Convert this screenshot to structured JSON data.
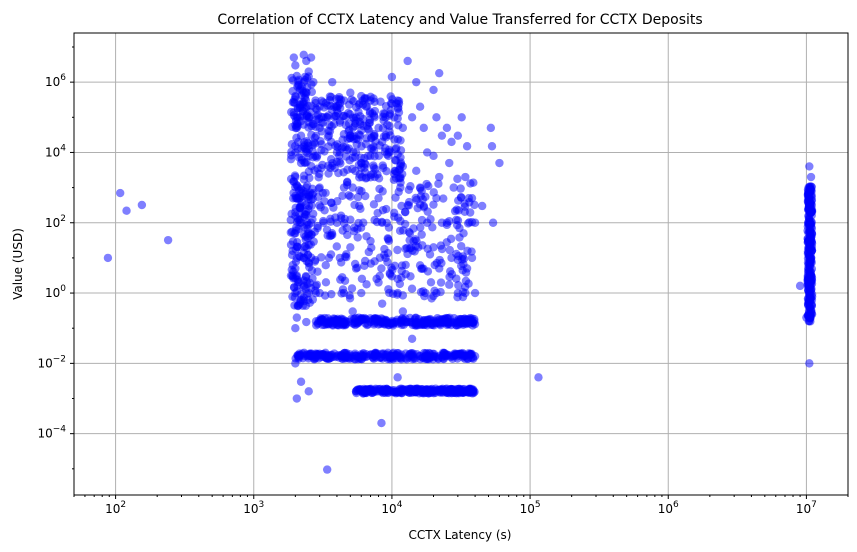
{
  "chart_data": {
    "type": "scatter",
    "title": "Correlation of CCTX Latency and Value Transferred for CCTX Deposits",
    "xlabel": "CCTX Latency (s)",
    "ylabel": "Value (USD)",
    "xscale": "log",
    "yscale": "log",
    "xlim": [
      50,
      20000000
    ],
    "ylim": [
      1.8e-06,
      25000000
    ],
    "x_ticks": [
      {
        "value": 100,
        "base": "10",
        "exp": "2"
      },
      {
        "value": 1000,
        "base": "10",
        "exp": "3"
      },
      {
        "value": 10000,
        "base": "10",
        "exp": "4"
      },
      {
        "value": 100000,
        "base": "10",
        "exp": "5"
      },
      {
        "value": 1000000,
        "base": "10",
        "exp": "6"
      },
      {
        "value": 10000000,
        "base": "10",
        "exp": "7"
      }
    ],
    "y_ticks": [
      {
        "value": 0.0001,
        "base": "10",
        "exp": "−4"
      },
      {
        "value": 0.01,
        "base": "10",
        "exp": "−2"
      },
      {
        "value": 1,
        "base": "10",
        "exp": "0"
      },
      {
        "value": 100,
        "base": "10",
        "exp": "2"
      },
      {
        "value": 10000,
        "base": "10",
        "exp": "4"
      },
      {
        "value": 1000000,
        "base": "10",
        "exp": "6"
      }
    ],
    "grid": true,
    "marker_color": "#0000ff",
    "marker_alpha": 0.5,
    "series": [
      {
        "points": [
          [
            88,
            10
          ],
          [
            108,
            700
          ],
          [
            120,
            220
          ],
          [
            155,
            320
          ],
          [
            240,
            32
          ],
          [
            1950,
            5000000
          ],
          [
            2000,
            3000000
          ],
          [
            2050,
            1500000
          ],
          [
            2100,
            800000
          ],
          [
            2000,
            400000
          ],
          [
            2150,
            200000
          ],
          [
            2000,
            100000
          ],
          [
            2050,
            50000
          ],
          [
            2100,
            20000
          ],
          [
            2000,
            10000
          ],
          [
            2200,
            5000
          ],
          [
            2000,
            2000
          ],
          [
            2100,
            1000
          ],
          [
            2050,
            500
          ],
          [
            2000,
            200
          ],
          [
            2150,
            100
          ],
          [
            2000,
            50
          ],
          [
            2100,
            20
          ],
          [
            2050,
            10
          ],
          [
            2000,
            5
          ],
          [
            2100,
            2
          ],
          [
            2000,
            1
          ],
          [
            2150,
            0.5
          ],
          [
            2050,
            0.2
          ],
          [
            2000,
            0.1
          ],
          [
            2100,
            0.016
          ],
          [
            2000,
            0.01
          ],
          [
            2050,
            0.001
          ],
          [
            2200,
            0.003
          ],
          [
            2300,
            6000000
          ],
          [
            2400,
            4000000
          ],
          [
            2500,
            2000000
          ],
          [
            2600,
            5000000
          ],
          [
            2300,
            500000
          ],
          [
            2500,
            100000
          ],
          [
            2400,
            1000
          ],
          [
            2600,
            100
          ],
          [
            2300,
            10
          ],
          [
            2500,
            1
          ],
          [
            2400,
            0.15
          ],
          [
            2600,
            0.016
          ],
          [
            2500,
            0.0016
          ],
          [
            2700,
            1000000
          ],
          [
            2800,
            300000
          ],
          [
            3000,
            200000
          ],
          [
            3200,
            100000
          ],
          [
            3000,
            50000
          ],
          [
            3500,
            30000
          ],
          [
            3000,
            1000
          ],
          [
            3200,
            100
          ],
          [
            3500,
            10
          ],
          [
            3000,
            1
          ],
          [
            3200,
            0.15
          ],
          [
            3500,
            0.016
          ],
          [
            3400,
            9.5e-06
          ],
          [
            3700,
            1000000
          ],
          [
            4000,
            200000
          ],
          [
            4500,
            300000
          ],
          [
            4200,
            80000
          ],
          [
            4000,
            10000
          ],
          [
            4500,
            1000
          ],
          [
            4000,
            100
          ],
          [
            4200,
            10
          ],
          [
            4500,
            1
          ],
          [
            4000,
            0.15
          ],
          [
            4300,
            0.016
          ],
          [
            5000,
            500000
          ],
          [
            5500,
            100000
          ],
          [
            6000,
            400000
          ],
          [
            6500,
            200000
          ],
          [
            5000,
            30000
          ],
          [
            5500,
            10000
          ],
          [
            6000,
            5000
          ],
          [
            5200,
            1000
          ],
          [
            5800,
            300
          ],
          [
            6200,
            100
          ],
          [
            5000,
            20
          ],
          [
            5500,
            5
          ],
          [
            6000,
            1
          ],
          [
            5200,
            0.3
          ],
          [
            5800,
            0.15
          ],
          [
            6200,
            0.016
          ],
          [
            5500,
            0.0016
          ],
          [
            6000,
            0.0016
          ],
          [
            6500,
            0.0016
          ],
          [
            7000,
            300000
          ],
          [
            7500,
            100000
          ],
          [
            8000,
            50000
          ],
          [
            8500,
            20000
          ],
          [
            7000,
            8000
          ],
          [
            7500,
            2000
          ],
          [
            8000,
            500
          ],
          [
            8500,
            100
          ],
          [
            7000,
            30
          ],
          [
            7500,
            8
          ],
          [
            8000,
            2
          ],
          [
            8500,
            0.5
          ],
          [
            7000,
            0.15
          ],
          [
            7500,
            0.016
          ],
          [
            8000,
            0.0016
          ],
          [
            8500,
            0.0016
          ],
          [
            8400,
            0.0002
          ],
          [
            9000,
            100000
          ],
          [
            10000,
            1400000
          ],
          [
            11000,
            300000
          ],
          [
            12000,
            50000
          ],
          [
            13000,
            4000000
          ],
          [
            14000,
            100000
          ],
          [
            9500,
            10000
          ],
          [
            10500,
            3000
          ],
          [
            11500,
            1000
          ],
          [
            12500,
            200
          ],
          [
            13500,
            50
          ],
          [
            9000,
            10
          ],
          [
            10000,
            3
          ],
          [
            11000,
            1
          ],
          [
            12000,
            0.3
          ],
          [
            13000,
            0.15
          ],
          [
            14000,
            0.05
          ],
          [
            10000,
            0.016
          ],
          [
            11000,
            0.004
          ],
          [
            12000,
            0.0016
          ],
          [
            13000,
            0.0016
          ],
          [
            14000,
            0.0016
          ],
          [
            15000,
            1000000
          ],
          [
            16000,
            200000
          ],
          [
            17000,
            50000
          ],
          [
            18000,
            10000
          ],
          [
            15000,
            3000
          ],
          [
            16000,
            1000
          ],
          [
            17000,
            300
          ],
          [
            18000,
            100
          ],
          [
            15500,
            20
          ],
          [
            16500,
            5
          ],
          [
            17500,
            1
          ],
          [
            15000,
            0.15
          ],
          [
            16000,
            0.016
          ],
          [
            17000,
            0.0016
          ],
          [
            18000,
            0.0016
          ],
          [
            19000,
            0.0016
          ],
          [
            20000,
            600000
          ],
          [
            22000,
            1800000
          ],
          [
            21000,
            100000
          ],
          [
            23000,
            30000
          ],
          [
            20000,
            8000
          ],
          [
            22000,
            2000
          ],
          [
            21000,
            500
          ],
          [
            23000,
            100
          ],
          [
            20000,
            20
          ],
          [
            22000,
            5
          ],
          [
            21000,
            1
          ],
          [
            23000,
            0.15
          ],
          [
            20000,
            0.016
          ],
          [
            22000,
            0.0016
          ],
          [
            25000,
            50000
          ],
          [
            27000,
            20000
          ],
          [
            30000,
            30000
          ],
          [
            26000,
            5000
          ],
          [
            28000,
            1000
          ],
          [
            25000,
            100
          ],
          [
            27000,
            10
          ],
          [
            30000,
            1
          ],
          [
            25000,
            0.15
          ],
          [
            28000,
            0.016
          ],
          [
            26000,
            0.0016
          ],
          [
            32000,
            100000
          ],
          [
            35000,
            15000
          ],
          [
            34000,
            2000
          ],
          [
            36000,
            500
          ],
          [
            33000,
            50
          ],
          [
            35000,
            5
          ],
          [
            34000,
            1
          ],
          [
            36000,
            0.15
          ],
          [
            33000,
            0.016
          ],
          [
            35000,
            0.0016
          ],
          [
            38000,
            500
          ],
          [
            40000,
            100
          ],
          [
            38000,
            10
          ],
          [
            40000,
            1
          ],
          [
            38000,
            0.15
          ],
          [
            40000,
            0.016
          ],
          [
            45000,
            300
          ],
          [
            52000,
            50000
          ],
          [
            53000,
            15000
          ],
          [
            54000,
            100
          ],
          [
            60000,
            5000
          ],
          [
            115000,
            0.004
          ],
          [
            9000000,
            1.6
          ],
          [
            10000000,
            0.2
          ],
          [
            10500000,
            4000
          ],
          [
            10500000,
            1000
          ],
          [
            10500000,
            300
          ],
          [
            10500000,
            100
          ],
          [
            10500000,
            30
          ],
          [
            10500000,
            10
          ],
          [
            10500000,
            3
          ],
          [
            10500000,
            1
          ],
          [
            10500000,
            0.5
          ],
          [
            10500000,
            0.16
          ],
          [
            10500000,
            0.01
          ],
          [
            10800000,
            2000
          ],
          [
            10800000,
            200
          ],
          [
            10800000,
            20
          ],
          [
            10800000,
            2
          ],
          [
            10800000,
            0.3
          ]
        ],
        "dense_bands": [
          {
            "x": [
              1850,
              2700
            ],
            "y": [
              0.4,
              1500000
            ]
          },
          {
            "x": [
              2700,
              40000
            ],
            "y": [
              0.7,
              1800
            ]
          },
          {
            "x": [
              2800,
              40000
            ],
            "y": [
              0.12,
              0.2
            ]
          },
          {
            "x": [
              2000,
              40000
            ],
            "y": [
              0.013,
              0.02
            ]
          },
          {
            "x": [
              5500,
              40000
            ],
            "y": [
              0.0014,
              0.0019
            ]
          },
          {
            "x": [
              2700,
              12000
            ],
            "y": [
              1800,
              400000
            ]
          },
          {
            "x": [
              10200000,
              11000000
            ],
            "y": [
              0.15,
              1100
            ]
          }
        ]
      }
    ]
  }
}
